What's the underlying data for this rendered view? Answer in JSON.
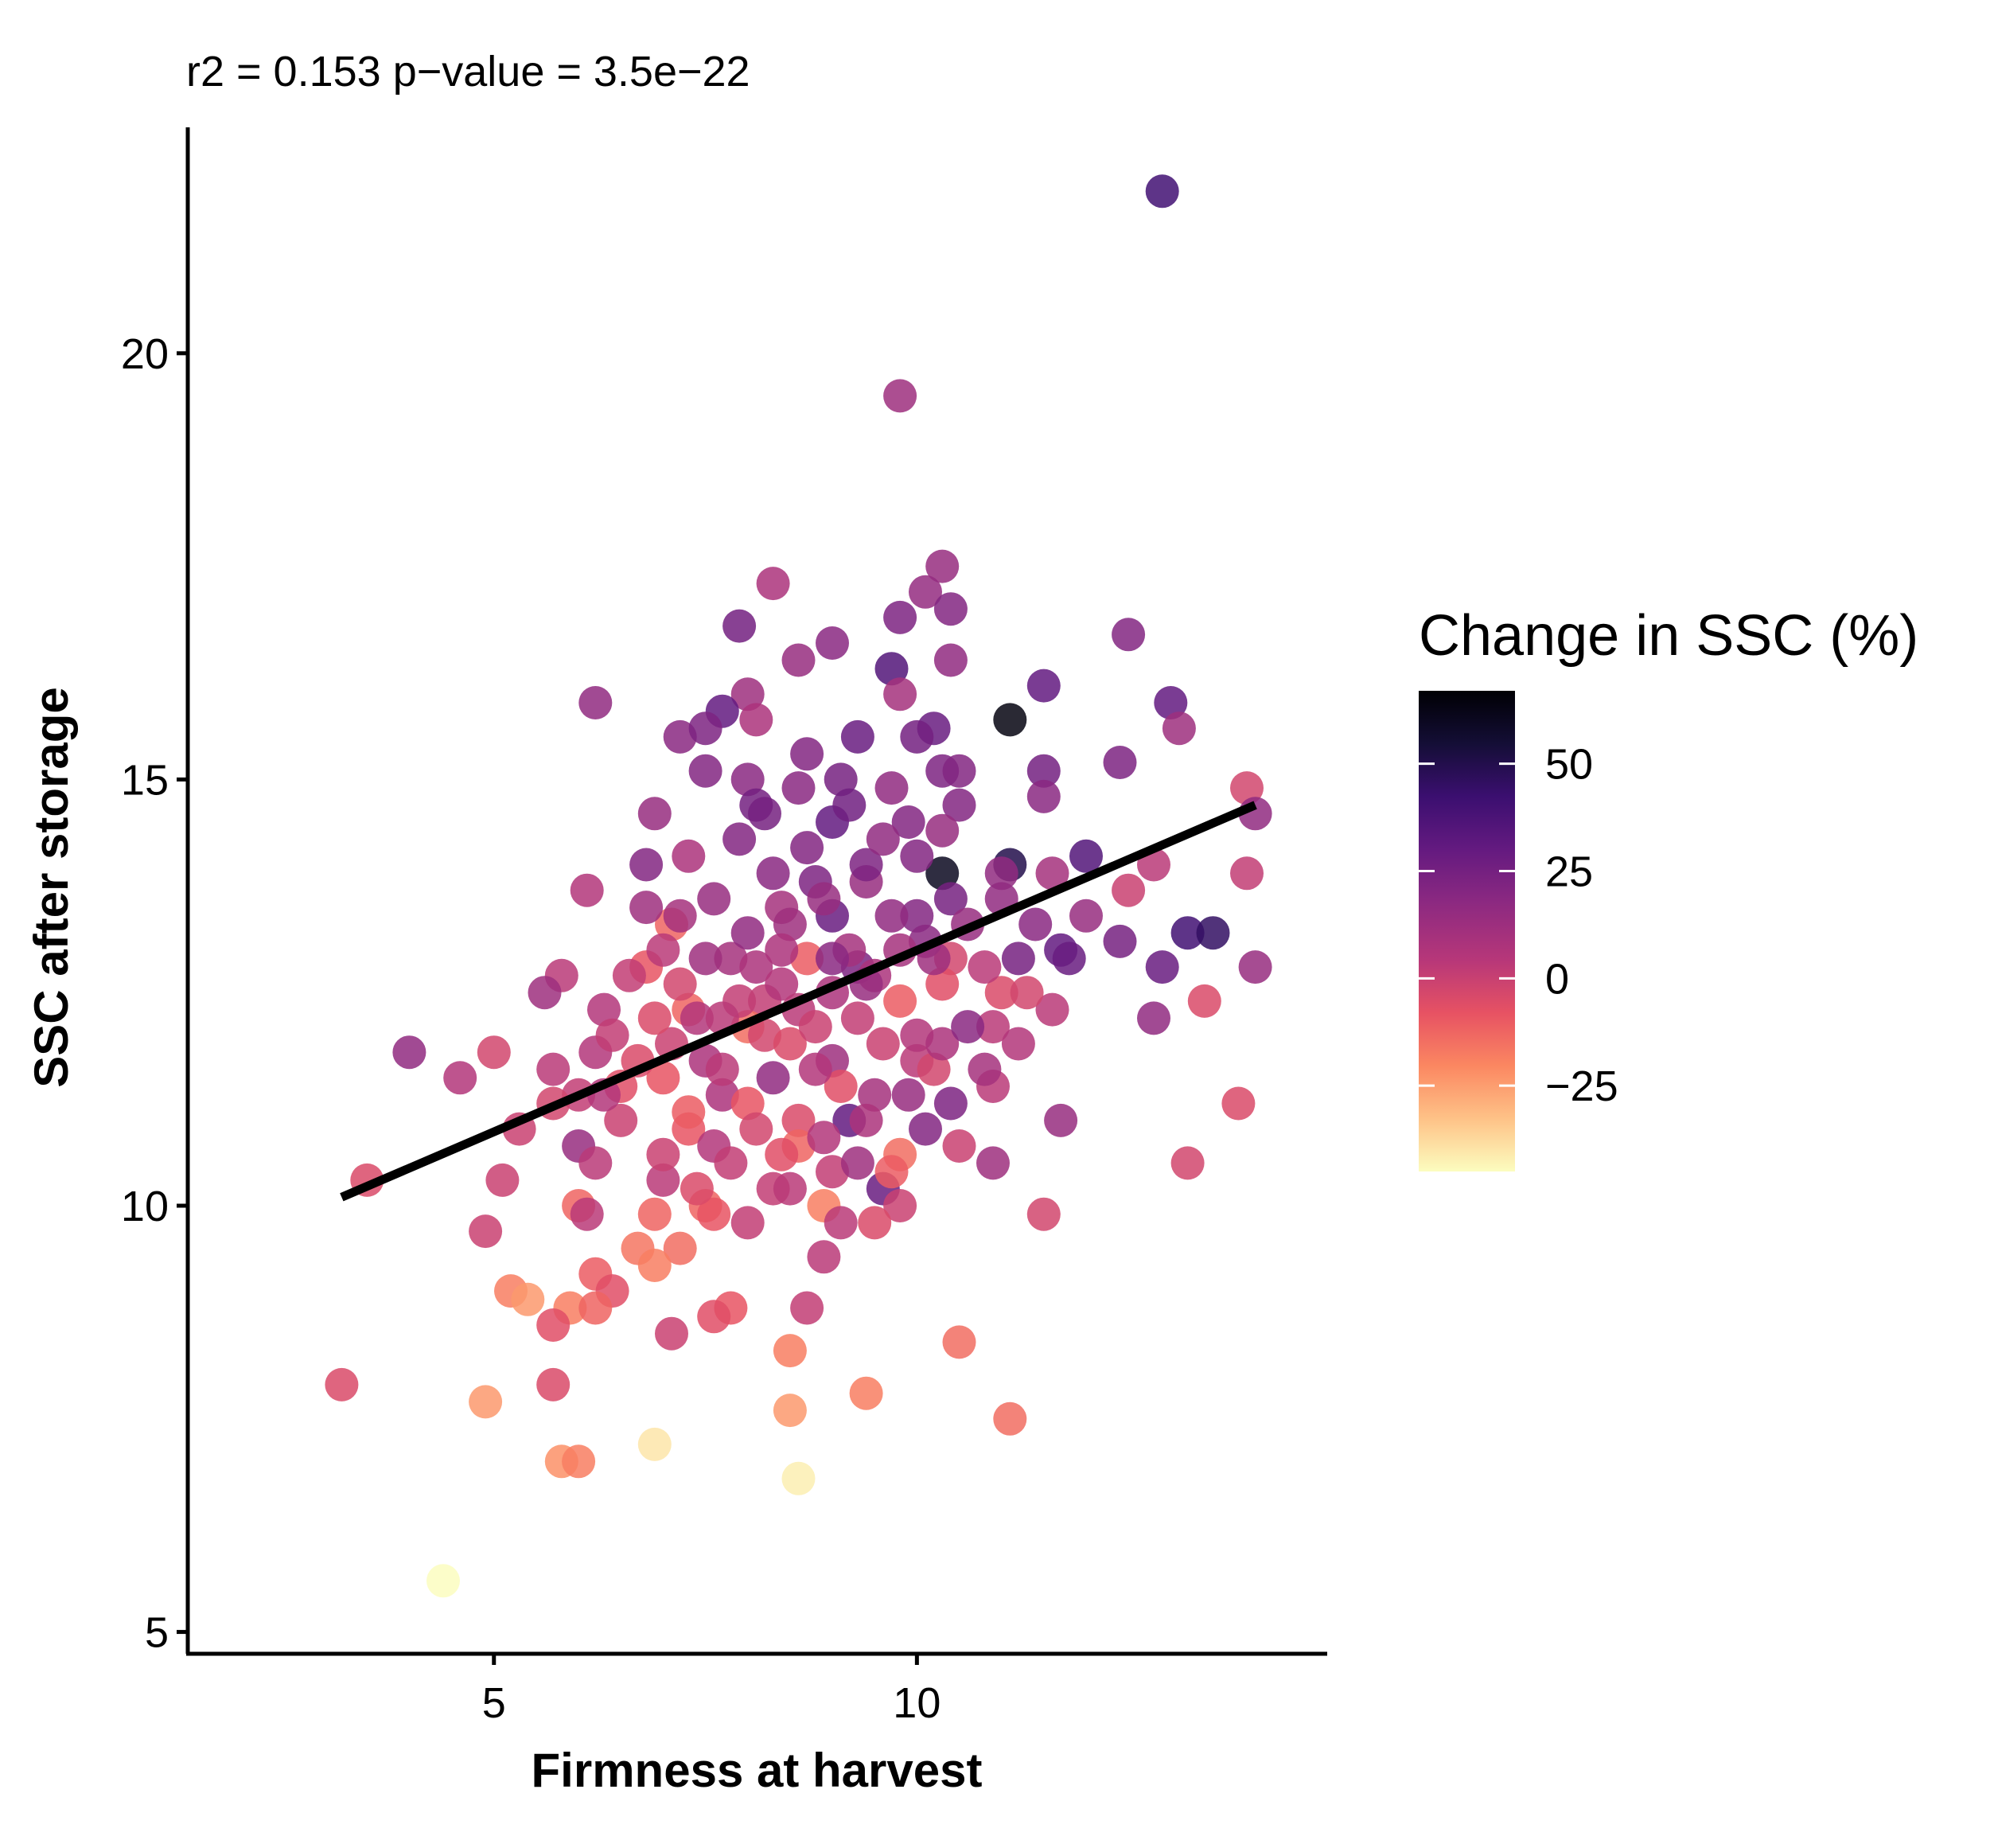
{
  "chart_data": {
    "type": "scatter",
    "title": "",
    "subtitle": "r2 =  0.153  p−value =  3.5e−22",
    "xlabel": "Firmness at harvest",
    "ylabel": "SSC after storage",
    "xlim": [
      1.4,
      14.85
    ],
    "ylim": [
      4.8,
      22.65
    ],
    "x_ticks": [
      5,
      10
    ],
    "x_tick_labels": [
      "5",
      "10"
    ],
    "y_ticks": [
      5,
      10,
      15,
      20
    ],
    "y_tick_labels": [
      "5",
      "10",
      "15",
      "20"
    ],
    "grid": false,
    "point_opacity": 0.85,
    "legend": {
      "title": "Change in SSC (%)",
      "placement": "right",
      "range": [
        -45,
        67
      ],
      "ticks": [
        50,
        25,
        0,
        -25
      ],
      "tick_labels": [
        "50",
        "25",
        "0",
        "−25"
      ],
      "colors": [
        "#fcfdbf",
        "#fec287",
        "#fb8761",
        "#e75263",
        "#b73779",
        "#8c2981",
        "#641a80",
        "#3b0f70",
        "#140e36",
        "#000004"
      ]
    },
    "regression_line": {
      "x": [
        3.2,
        14.0
      ],
      "y": [
        10.1,
        14.7
      ],
      "color": "#000000"
    },
    "points": [
      {
        "x": 12.9,
        "y": 21.9,
        "c": 40
      },
      {
        "x": 9.8,
        "y": 19.5,
        "c": 12
      },
      {
        "x": 10.3,
        "y": 17.5,
        "c": 14
      },
      {
        "x": 8.3,
        "y": 17.3,
        "c": 8
      },
      {
        "x": 10.1,
        "y": 17.2,
        "c": 15
      },
      {
        "x": 10.4,
        "y": 17.0,
        "c": 20
      },
      {
        "x": 9.8,
        "y": 16.9,
        "c": 22
      },
      {
        "x": 7.9,
        "y": 16.8,
        "c": 25
      },
      {
        "x": 12.5,
        "y": 16.7,
        "c": 20
      },
      {
        "x": 9.0,
        "y": 16.6,
        "c": 18
      },
      {
        "x": 8.6,
        "y": 16.4,
        "c": 14
      },
      {
        "x": 10.4,
        "y": 16.4,
        "c": 16
      },
      {
        "x": 9.7,
        "y": 16.3,
        "c": 35
      },
      {
        "x": 11.5,
        "y": 16.1,
        "c": 30
      },
      {
        "x": 9.8,
        "y": 16.0,
        "c": 10
      },
      {
        "x": 8.0,
        "y": 16.0,
        "c": 12
      },
      {
        "x": 6.2,
        "y": 15.9,
        "c": 16
      },
      {
        "x": 13.0,
        "y": 15.9,
        "c": 30
      },
      {
        "x": 7.7,
        "y": 15.8,
        "c": 30
      },
      {
        "x": 11.1,
        "y": 15.7,
        "c": 64
      },
      {
        "x": 8.1,
        "y": 15.7,
        "c": 8
      },
      {
        "x": 10.2,
        "y": 15.6,
        "c": 28
      },
      {
        "x": 13.1,
        "y": 15.6,
        "c": 12
      },
      {
        "x": 7.2,
        "y": 15.5,
        "c": 18
      },
      {
        "x": 7.5,
        "y": 15.6,
        "c": 22
      },
      {
        "x": 9.3,
        "y": 15.5,
        "c": 28
      },
      {
        "x": 10.0,
        "y": 15.5,
        "c": 25
      },
      {
        "x": 8.7,
        "y": 15.3,
        "c": 20
      },
      {
        "x": 12.4,
        "y": 15.2,
        "c": 22
      },
      {
        "x": 7.5,
        "y": 15.1,
        "c": 20
      },
      {
        "x": 10.3,
        "y": 15.1,
        "c": 22
      },
      {
        "x": 11.5,
        "y": 15.1,
        "c": 25
      },
      {
        "x": 8.0,
        "y": 15.0,
        "c": 18
      },
      {
        "x": 9.1,
        "y": 15.0,
        "c": 24
      },
      {
        "x": 9.7,
        "y": 14.9,
        "c": 16
      },
      {
        "x": 10.5,
        "y": 15.1,
        "c": 20
      },
      {
        "x": 11.5,
        "y": 14.8,
        "c": 18
      },
      {
        "x": 8.1,
        "y": 14.7,
        "c": 25
      },
      {
        "x": 10.5,
        "y": 14.7,
        "c": 20
      },
      {
        "x": 13.9,
        "y": 14.9,
        "c": -2
      },
      {
        "x": 14.0,
        "y": 14.6,
        "c": 16
      },
      {
        "x": 6.9,
        "y": 14.6,
        "c": 14
      },
      {
        "x": 9.0,
        "y": 14.5,
        "c": 30
      },
      {
        "x": 10.3,
        "y": 14.4,
        "c": 14
      },
      {
        "x": 12.0,
        "y": 14.1,
        "c": 35
      },
      {
        "x": 6.8,
        "y": 14.0,
        "c": 20
      },
      {
        "x": 7.3,
        "y": 14.1,
        "c": 8
      },
      {
        "x": 11.1,
        "y": 14.0,
        "c": 50
      },
      {
        "x": 8.8,
        "y": 13.8,
        "c": 22
      },
      {
        "x": 9.4,
        "y": 13.8,
        "c": 14
      },
      {
        "x": 10.3,
        "y": 13.9,
        "c": 60
      },
      {
        "x": 12.8,
        "y": 14.0,
        "c": 4
      },
      {
        "x": 6.1,
        "y": 13.7,
        "c": 6
      },
      {
        "x": 8.4,
        "y": 13.5,
        "c": 10
      },
      {
        "x": 10.0,
        "y": 13.4,
        "c": 20
      },
      {
        "x": 12.5,
        "y": 13.7,
        "c": 0
      },
      {
        "x": 13.9,
        "y": 13.9,
        "c": 2
      },
      {
        "x": 7.1,
        "y": 13.3,
        "c": -12
      },
      {
        "x": 9.0,
        "y": 13.4,
        "c": 28
      },
      {
        "x": 11.0,
        "y": 13.6,
        "c": 16
      },
      {
        "x": 12.0,
        "y": 13.4,
        "c": 14
      },
      {
        "x": 13.2,
        "y": 13.2,
        "c": 40
      },
      {
        "x": 13.5,
        "y": 13.2,
        "c": 45
      },
      {
        "x": 11.7,
        "y": 13.0,
        "c": 30
      },
      {
        "x": 12.4,
        "y": 13.1,
        "c": 24
      },
      {
        "x": 14.0,
        "y": 12.8,
        "c": 14
      },
      {
        "x": 10.4,
        "y": 12.9,
        "c": -2
      },
      {
        "x": 8.7,
        "y": 12.9,
        "c": -10
      },
      {
        "x": 6.8,
        "y": 12.8,
        "c": -8
      },
      {
        "x": 9.3,
        "y": 12.8,
        "c": 22
      },
      {
        "x": 12.9,
        "y": 12.8,
        "c": 28
      },
      {
        "x": 5.8,
        "y": 12.7,
        "c": 4
      },
      {
        "x": 10.3,
        "y": 12.6,
        "c": -6
      },
      {
        "x": 5.6,
        "y": 12.5,
        "c": 12
      },
      {
        "x": 8.2,
        "y": 12.4,
        "c": 2
      },
      {
        "x": 11.0,
        "y": 12.5,
        "c": -4
      },
      {
        "x": 13.4,
        "y": 12.4,
        "c": -4
      },
      {
        "x": 6.3,
        "y": 12.3,
        "c": 6
      },
      {
        "x": 11.6,
        "y": 12.3,
        "c": 4
      },
      {
        "x": 7.3,
        "y": 12.3,
        "c": -12
      },
      {
        "x": 12.8,
        "y": 12.2,
        "c": 16
      },
      {
        "x": 8.0,
        "y": 12.1,
        "c": -14
      },
      {
        "x": 10.9,
        "y": 12.1,
        "c": 4
      },
      {
        "x": 4.0,
        "y": 11.8,
        "c": 16
      },
      {
        "x": 5.0,
        "y": 11.8,
        "c": -2
      },
      {
        "x": 6.2,
        "y": 11.8,
        "c": 6
      },
      {
        "x": 7.5,
        "y": 11.7,
        "c": 8
      },
      {
        "x": 9.0,
        "y": 11.7,
        "c": 12
      },
      {
        "x": 10.0,
        "y": 11.7,
        "c": 4
      },
      {
        "x": 11.2,
        "y": 11.9,
        "c": 6
      },
      {
        "x": 5.7,
        "y": 11.6,
        "c": 4
      },
      {
        "x": 4.6,
        "y": 11.5,
        "c": 6
      },
      {
        "x": 7.0,
        "y": 11.5,
        "c": -8
      },
      {
        "x": 8.3,
        "y": 11.5,
        "c": 16
      },
      {
        "x": 10.9,
        "y": 11.4,
        "c": 4
      },
      {
        "x": 6.0,
        "y": 11.3,
        "c": 2
      },
      {
        "x": 7.7,
        "y": 11.3,
        "c": 8
      },
      {
        "x": 9.5,
        "y": 11.3,
        "c": 10
      },
      {
        "x": 5.7,
        "y": 11.2,
        "c": -2
      },
      {
        "x": 10.4,
        "y": 11.2,
        "c": 22
      },
      {
        "x": 11.7,
        "y": 11.0,
        "c": 14
      },
      {
        "x": 6.5,
        "y": 11.0,
        "c": 0
      },
      {
        "x": 8.6,
        "y": 11.0,
        "c": -4
      },
      {
        "x": 9.2,
        "y": 11.0,
        "c": 30
      },
      {
        "x": 5.3,
        "y": 10.9,
        "c": 0
      },
      {
        "x": 7.3,
        "y": 10.9,
        "c": -8
      },
      {
        "x": 10.1,
        "y": 10.9,
        "c": 20
      },
      {
        "x": 13.8,
        "y": 11.2,
        "c": -4
      },
      {
        "x": 6.0,
        "y": 10.7,
        "c": 14
      },
      {
        "x": 7.6,
        "y": 10.7,
        "c": 6
      },
      {
        "x": 8.6,
        "y": 10.7,
        "c": -12
      },
      {
        "x": 10.5,
        "y": 10.7,
        "c": 0
      },
      {
        "x": 5.1,
        "y": 10.3,
        "c": 0
      },
      {
        "x": 6.2,
        "y": 10.5,
        "c": 4
      },
      {
        "x": 9.8,
        "y": 10.6,
        "c": -14
      },
      {
        "x": 10.9,
        "y": 10.5,
        "c": 12
      },
      {
        "x": 13.2,
        "y": 10.5,
        "c": -2
      },
      {
        "x": 3.5,
        "y": 10.3,
        "c": -4
      },
      {
        "x": 7.0,
        "y": 10.3,
        "c": 4
      },
      {
        "x": 8.3,
        "y": 10.2,
        "c": 2
      },
      {
        "x": 9.6,
        "y": 10.2,
        "c": 28
      },
      {
        "x": 6.0,
        "y": 10.0,
        "c": -12
      },
      {
        "x": 7.5,
        "y": 10.0,
        "c": -12
      },
      {
        "x": 8.9,
        "y": 10.0,
        "c": -18
      },
      {
        "x": 9.8,
        "y": 10.0,
        "c": 0
      },
      {
        "x": 6.1,
        "y": 9.9,
        "c": 4
      },
      {
        "x": 6.9,
        "y": 9.9,
        "c": -12
      },
      {
        "x": 7.6,
        "y": 9.9,
        "c": -8
      },
      {
        "x": 8.0,
        "y": 9.8,
        "c": 2
      },
      {
        "x": 9.1,
        "y": 9.8,
        "c": 4
      },
      {
        "x": 9.5,
        "y": 9.8,
        "c": -4
      },
      {
        "x": 11.5,
        "y": 9.9,
        "c": -2
      },
      {
        "x": 4.9,
        "y": 9.7,
        "c": 0
      },
      {
        "x": 6.7,
        "y": 9.5,
        "c": -16
      },
      {
        "x": 7.2,
        "y": 9.5,
        "c": -14
      },
      {
        "x": 8.9,
        "y": 9.4,
        "c": 4
      },
      {
        "x": 6.9,
        "y": 9.3,
        "c": -18
      },
      {
        "x": 6.2,
        "y": 9.2,
        "c": -10
      },
      {
        "x": 5.2,
        "y": 9.0,
        "c": -18
      },
      {
        "x": 5.4,
        "y": 8.9,
        "c": -24
      },
      {
        "x": 6.4,
        "y": 9.0,
        "c": -6
      },
      {
        "x": 5.9,
        "y": 8.8,
        "c": -18
      },
      {
        "x": 6.2,
        "y": 8.8,
        "c": -12
      },
      {
        "x": 7.8,
        "y": 8.8,
        "c": -8
      },
      {
        "x": 8.7,
        "y": 8.8,
        "c": 2
      },
      {
        "x": 7.6,
        "y": 8.7,
        "c": -6
      },
      {
        "x": 5.7,
        "y": 8.6,
        "c": -6
      },
      {
        "x": 7.1,
        "y": 8.5,
        "c": 0
      },
      {
        "x": 10.5,
        "y": 8.4,
        "c": -14
      },
      {
        "x": 8.5,
        "y": 8.3,
        "c": -18
      },
      {
        "x": 3.2,
        "y": 7.9,
        "c": -4
      },
      {
        "x": 5.7,
        "y": 7.9,
        "c": -4
      },
      {
        "x": 9.4,
        "y": 7.8,
        "c": -18
      },
      {
        "x": 4.9,
        "y": 7.7,
        "c": -24
      },
      {
        "x": 8.5,
        "y": 7.6,
        "c": -24
      },
      {
        "x": 11.1,
        "y": 7.5,
        "c": -14
      },
      {
        "x": 6.9,
        "y": 7.2,
        "c": -40
      },
      {
        "x": 5.8,
        "y": 7.0,
        "c": -22
      },
      {
        "x": 6.0,
        "y": 7.0,
        "c": -18
      },
      {
        "x": 8.6,
        "y": 6.8,
        "c": -42
      },
      {
        "x": 4.4,
        "y": 5.6,
        "c": -45
      },
      {
        "x": 6.8,
        "y": 13.5,
        "c": 12
      },
      {
        "x": 7.0,
        "y": 13.0,
        "c": 4
      },
      {
        "x": 7.2,
        "y": 12.6,
        "c": -2
      },
      {
        "x": 7.4,
        "y": 12.2,
        "c": 6
      },
      {
        "x": 7.6,
        "y": 13.6,
        "c": 14
      },
      {
        "x": 7.8,
        "y": 12.9,
        "c": 10
      },
      {
        "x": 7.9,
        "y": 12.4,
        "c": 2
      },
      {
        "x": 8.0,
        "y": 13.2,
        "c": 16
      },
      {
        "x": 8.1,
        "y": 12.8,
        "c": 8
      },
      {
        "x": 8.2,
        "y": 12.0,
        "c": -2
      },
      {
        "x": 8.3,
        "y": 13.9,
        "c": 18
      },
      {
        "x": 8.4,
        "y": 12.6,
        "c": 6
      },
      {
        "x": 8.5,
        "y": 11.9,
        "c": -4
      },
      {
        "x": 8.5,
        "y": 13.3,
        "c": 12
      },
      {
        "x": 8.6,
        "y": 12.3,
        "c": 4
      },
      {
        "x": 8.7,
        "y": 14.2,
        "c": 20
      },
      {
        "x": 8.8,
        "y": 12.1,
        "c": 0
      },
      {
        "x": 8.9,
        "y": 13.6,
        "c": 14
      },
      {
        "x": 9.0,
        "y": 12.5,
        "c": 8
      },
      {
        "x": 9.1,
        "y": 11.4,
        "c": -6
      },
      {
        "x": 9.2,
        "y": 13.0,
        "c": 10
      },
      {
        "x": 9.3,
        "y": 12.2,
        "c": 2
      },
      {
        "x": 9.4,
        "y": 14.0,
        "c": 22
      },
      {
        "x": 9.5,
        "y": 12.7,
        "c": 8
      },
      {
        "x": 9.6,
        "y": 11.9,
        "c": 0
      },
      {
        "x": 9.7,
        "y": 13.4,
        "c": 16
      },
      {
        "x": 9.8,
        "y": 12.4,
        "c": -10
      },
      {
        "x": 9.9,
        "y": 14.5,
        "c": 20
      },
      {
        "x": 10.0,
        "y": 12.0,
        "c": 6
      },
      {
        "x": 10.1,
        "y": 13.1,
        "c": 18
      },
      {
        "x": 10.2,
        "y": 11.6,
        "c": -2
      },
      {
        "x": 10.4,
        "y": 13.6,
        "c": 24
      },
      {
        "x": 7.1,
        "y": 11.9,
        "c": 0
      },
      {
        "x": 6.9,
        "y": 12.2,
        "c": -4
      },
      {
        "x": 6.6,
        "y": 12.7,
        "c": 2
      },
      {
        "x": 6.5,
        "y": 11.4,
        "c": -6
      },
      {
        "x": 7.3,
        "y": 11.1,
        "c": -10
      },
      {
        "x": 7.5,
        "y": 12.9,
        "c": 12
      },
      {
        "x": 7.7,
        "y": 11.6,
        "c": 4
      },
      {
        "x": 7.9,
        "y": 14.3,
        "c": 20
      },
      {
        "x": 8.0,
        "y": 11.2,
        "c": -8
      },
      {
        "x": 8.2,
        "y": 14.6,
        "c": 24
      },
      {
        "x": 8.4,
        "y": 10.6,
        "c": -6
      },
      {
        "x": 8.6,
        "y": 14.9,
        "c": 18
      },
      {
        "x": 8.8,
        "y": 11.6,
        "c": 6
      },
      {
        "x": 9.0,
        "y": 10.4,
        "c": 2
      },
      {
        "x": 9.2,
        "y": 14.7,
        "c": 26
      },
      {
        "x": 9.4,
        "y": 11.0,
        "c": 8
      },
      {
        "x": 9.6,
        "y": 14.3,
        "c": 16
      },
      {
        "x": 9.8,
        "y": 13.0,
        "c": 10
      },
      {
        "x": 10.0,
        "y": 14.1,
        "c": 20
      },
      {
        "x": 10.2,
        "y": 12.9,
        "c": 12
      },
      {
        "x": 10.6,
        "y": 13.3,
        "c": 14
      },
      {
        "x": 10.8,
        "y": 12.8,
        "c": 4
      },
      {
        "x": 11.0,
        "y": 13.9,
        "c": 16
      },
      {
        "x": 11.2,
        "y": 12.9,
        "c": 24
      },
      {
        "x": 11.4,
        "y": 13.3,
        "c": 18
      },
      {
        "x": 11.6,
        "y": 13.9,
        "c": 10
      },
      {
        "x": 11.8,
        "y": 12.9,
        "c": 28
      },
      {
        "x": 11.3,
        "y": 12.5,
        "c": -2
      },
      {
        "x": 6.4,
        "y": 12.0,
        "c": 2
      },
      {
        "x": 6.7,
        "y": 11.7,
        "c": -4
      },
      {
        "x": 6.3,
        "y": 11.3,
        "c": 6
      },
      {
        "x": 7.0,
        "y": 10.6,
        "c": 0
      },
      {
        "x": 7.4,
        "y": 10.2,
        "c": -4
      },
      {
        "x": 7.8,
        "y": 10.5,
        "c": 2
      },
      {
        "x": 8.1,
        "y": 10.9,
        "c": -2
      },
      {
        "x": 8.5,
        "y": 10.2,
        "c": 4
      },
      {
        "x": 8.9,
        "y": 10.8,
        "c": 6
      },
      {
        "x": 9.3,
        "y": 10.5,
        "c": 12
      },
      {
        "x": 9.7,
        "y": 10.4,
        "c": -10
      },
      {
        "x": 9.9,
        "y": 11.3,
        "c": 14
      },
      {
        "x": 10.3,
        "y": 11.9,
        "c": 8
      },
      {
        "x": 10.6,
        "y": 12.1,
        "c": 18
      },
      {
        "x": 10.8,
        "y": 11.6,
        "c": 10
      },
      {
        "x": 9.4,
        "y": 12.6,
        "c": 14
      },
      {
        "x": 9.0,
        "y": 12.9,
        "c": 18
      },
      {
        "x": 8.4,
        "y": 13.0,
        "c": 8
      },
      {
        "x": 7.7,
        "y": 12.2,
        "c": 4
      },
      {
        "x": 7.2,
        "y": 13.4,
        "c": 10
      }
    ]
  }
}
